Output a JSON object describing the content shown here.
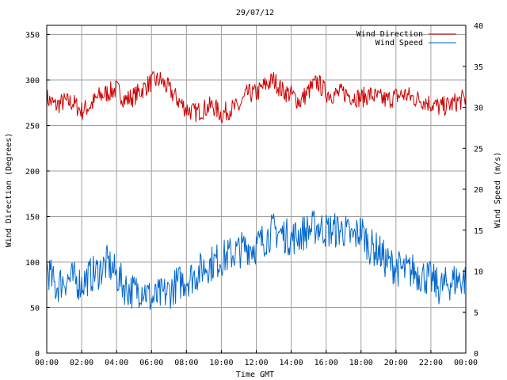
{
  "chart_data": {
    "type": "line",
    "title": "29/07/12",
    "xlabel": "Time GMT",
    "ylabel": "Wind Direction (Degrees)",
    "y2label": "Wind Speed (m/s)",
    "x_ticks": [
      "00:00",
      "02:00",
      "04:00",
      "06:00",
      "08:00",
      "10:00",
      "12:00",
      "14:00",
      "16:00",
      "18:00",
      "20:00",
      "22:00",
      "00:00"
    ],
    "y_ticks": [
      "0",
      "50",
      "100",
      "150",
      "200",
      "250",
      "300",
      "350"
    ],
    "y2_ticks": [
      "0",
      "5",
      "10",
      "15",
      "20",
      "25",
      "30",
      "35",
      "40"
    ],
    "xlim": [
      0,
      24
    ],
    "ylim": [
      0,
      360
    ],
    "y2lim": [
      0,
      40
    ],
    "grid": true,
    "legend": "top-right",
    "series": [
      {
        "name": "Wind Direction",
        "axis": "left",
        "color": "#cc0000",
        "x": [
          0,
          0.5,
          1,
          1.5,
          2,
          2.5,
          3,
          3.5,
          4,
          4.5,
          5,
          5.5,
          6,
          6.5,
          7,
          7.5,
          8,
          8.5,
          9,
          9.5,
          10,
          10.5,
          11,
          11.5,
          12,
          12.5,
          13,
          13.5,
          14,
          14.5,
          15,
          15.5,
          16,
          16.5,
          17,
          17.5,
          18,
          18.5,
          19,
          19.5,
          20,
          20.5,
          21,
          21.5,
          22,
          22.5,
          23,
          23.5,
          24
        ],
        "values": [
          280,
          272,
          276,
          275,
          266,
          272,
          282,
          286,
          290,
          278,
          282,
          290,
          298,
          300,
          290,
          278,
          268,
          264,
          268,
          272,
          262,
          268,
          270,
          285,
          285,
          294,
          300,
          288,
          284,
          276,
          288,
          298,
          286,
          284,
          286,
          282,
          280,
          284,
          280,
          278,
          282,
          284,
          280,
          278,
          274,
          270,
          272,
          276,
          280
        ]
      },
      {
        "name": "Wind Speed",
        "axis": "right",
        "color": "#0066cc",
        "x": [
          0,
          0.5,
          1,
          1.5,
          2,
          2.5,
          3,
          3.5,
          4,
          4.5,
          5,
          5.5,
          6,
          6.5,
          7,
          7.5,
          8,
          8.5,
          9,
          9.5,
          10,
          10.5,
          11,
          11.5,
          12,
          12.5,
          13,
          13.5,
          14,
          14.5,
          15,
          15.5,
          16,
          16.5,
          17,
          17.5,
          18,
          18.5,
          19,
          19.5,
          20,
          20.5,
          21,
          21.5,
          22,
          22.5,
          23,
          23.5,
          24
        ],
        "values": [
          10.5,
          8,
          9,
          9,
          8.5,
          9.5,
          10,
          11,
          9.5,
          8,
          7.5,
          8,
          6.5,
          7,
          7.5,
          8.5,
          9,
          9.5,
          10.5,
          11,
          11.5,
          12,
          12.5,
          13,
          13,
          14,
          15,
          14.5,
          14,
          14.5,
          15,
          15.5,
          15,
          15,
          15,
          14,
          15,
          13,
          12.5,
          11,
          10.5,
          10,
          10,
          9.5,
          9,
          8,
          8.5,
          9,
          9
        ]
      }
    ]
  }
}
